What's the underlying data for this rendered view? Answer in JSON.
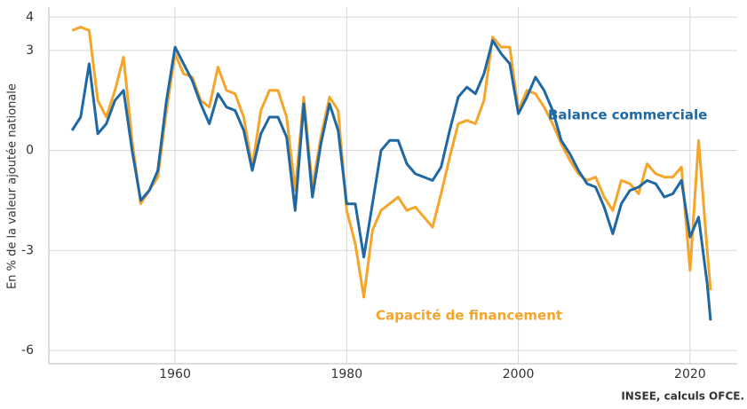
{
  "chart_data": {
    "type": "line",
    "y_label": "En % de la valeur ajoutée nationale",
    "source": "INSEE, calculs OFCE.",
    "annotations": [
      "Balance commerciale",
      "Capacité de financement"
    ],
    "x": [
      1948,
      1949,
      1950,
      1951,
      1952,
      1953,
      1954,
      1955,
      1956,
      1957,
      1958,
      1959,
      1960,
      1961,
      1962,
      1963,
      1964,
      1965,
      1966,
      1967,
      1968,
      1969,
      1970,
      1971,
      1972,
      1973,
      1974,
      1975,
      1976,
      1977,
      1978,
      1979,
      1980,
      1981,
      1982,
      1983,
      1984,
      1985,
      1986,
      1987,
      1988,
      1989,
      1990,
      1991,
      1992,
      1993,
      1994,
      1995,
      1996,
      1997,
      1998,
      1999,
      2000,
      2001,
      2002,
      2003,
      2004,
      2005,
      2006,
      2007,
      2008,
      2009,
      2010,
      2011,
      2012,
      2013,
      2014,
      2015,
      2016,
      2017,
      2018,
      2019,
      2020,
      2021,
      2022,
      2022.4
    ],
    "series": [
      {
        "name": "Balance commerciale",
        "color": "#1f68a3",
        "values": [
          0.6,
          1.0,
          2.6,
          0.5,
          0.8,
          1.5,
          1.8,
          0.0,
          -1.5,
          -1.2,
          -0.6,
          1.5,
          3.1,
          2.6,
          2.1,
          1.4,
          0.8,
          1.7,
          1.3,
          1.2,
          0.6,
          -0.6,
          0.5,
          1.0,
          1.0,
          0.4,
          -1.8,
          1.4,
          -1.4,
          0.2,
          1.4,
          0.6,
          -1.6,
          -1.6,
          -3.2,
          -1.6,
          0.0,
          0.3,
          0.3,
          -0.4,
          -0.7,
          -0.8,
          -0.9,
          -0.5,
          0.6,
          1.6,
          1.9,
          1.7,
          2.3,
          3.3,
          2.9,
          2.6,
          1.1,
          1.6,
          2.2,
          1.8,
          1.2,
          0.3,
          -0.1,
          -0.6,
          -1.0,
          -1.1,
          -1.7,
          -2.5,
          -1.6,
          -1.2,
          -1.1,
          -0.9,
          -1.0,
          -1.4,
          -1.3,
          -0.9,
          -2.6,
          -2.0,
          -4.0,
          -5.1
        ]
      },
      {
        "name": "Capacité de financement",
        "color": "#f4a52a",
        "values": [
          3.6,
          3.7,
          3.6,
          1.5,
          1.0,
          1.8,
          2.8,
          0.3,
          -1.6,
          -1.2,
          -0.8,
          1.2,
          2.9,
          2.3,
          2.2,
          1.5,
          1.3,
          2.5,
          1.8,
          1.7,
          1.0,
          -0.5,
          1.2,
          1.8,
          1.8,
          1.0,
          -1.2,
          1.6,
          -1.1,
          0.4,
          1.6,
          1.2,
          -1.8,
          -2.8,
          -4.4,
          -2.4,
          -1.8,
          -1.6,
          -1.4,
          -1.8,
          -1.7,
          -2.0,
          -2.3,
          -1.3,
          -0.2,
          0.8,
          0.9,
          0.8,
          1.5,
          3.4,
          3.1,
          3.1,
          1.2,
          1.8,
          1.7,
          1.3,
          0.8,
          0.2,
          -0.3,
          -0.7,
          -0.9,
          -0.8,
          -1.4,
          -1.8,
          -0.9,
          -1.0,
          -1.3,
          -0.4,
          -0.7,
          -0.8,
          -0.8,
          -0.5,
          -3.6,
          0.3,
          -3.0,
          -4.2
        ]
      }
    ],
    "xlim": [
      1945.3,
      2025.5
    ],
    "xticks": [
      1960,
      1980,
      2000,
      2020
    ],
    "ylim": [
      -6.4,
      4.3
    ],
    "yticks": [
      -6,
      -3,
      0,
      3,
      4
    ],
    "grid": true
  }
}
